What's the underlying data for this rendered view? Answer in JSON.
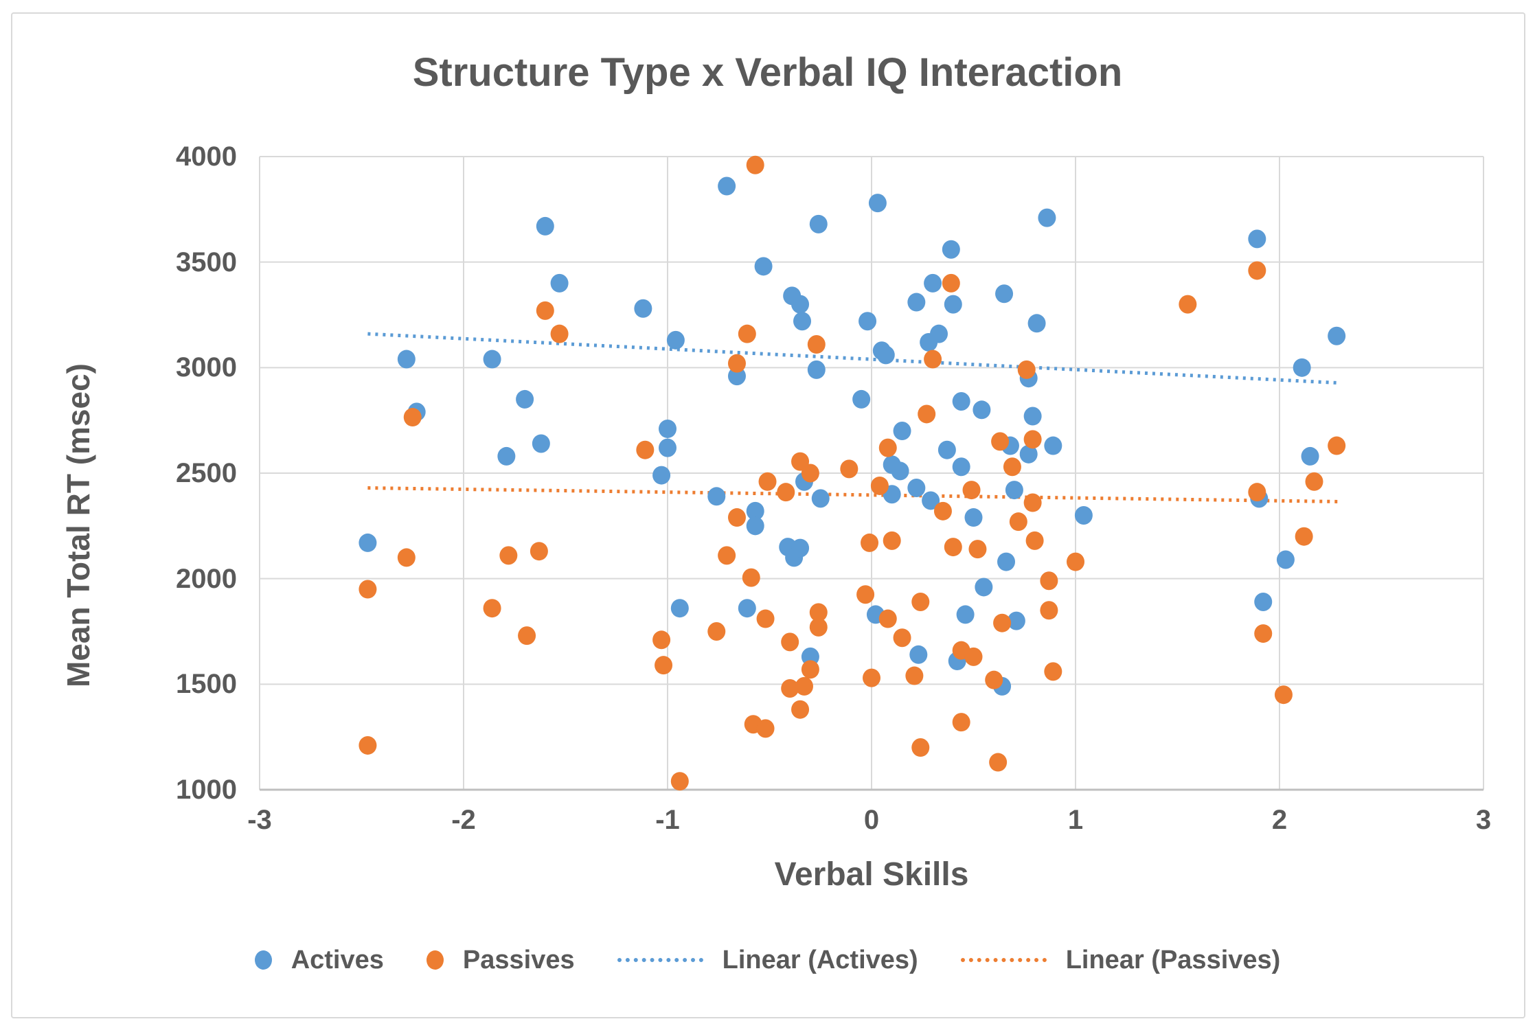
{
  "title": "Structure Type x Verbal IQ Interaction",
  "x_axis": {
    "title": "Verbal Skills",
    "tick_labels": [
      "-3",
      "-2",
      "-1",
      "0",
      "1",
      "2",
      "3"
    ],
    "min": -3,
    "max": 3
  },
  "y_axis": {
    "title": "Mean Total RT (msec)",
    "tick_labels": [
      "4000",
      "3500",
      "3000",
      "2500",
      "2000",
      "1500",
      "1000"
    ],
    "min": 1000,
    "max": 4000
  },
  "colors": {
    "actives": "#5B9BD5",
    "passives": "#ED7D31",
    "gridline": "#D9D9D9",
    "axis_line": "#BFBFBF",
    "text": "#595959",
    "frame_border": "#D9D9D9"
  },
  "legend": [
    {
      "label": "Actives",
      "marker": "dot",
      "color": "#5B9BD5"
    },
    {
      "label": "Passives",
      "marker": "dot",
      "color": "#ED7D31"
    },
    {
      "label": "Linear (Actives)",
      "marker": "dotted-line",
      "color": "#5B9BD5"
    },
    {
      "label": "Linear (Passives)",
      "marker": "dotted-line",
      "color": "#ED7D31"
    }
  ],
  "chart_data": {
    "type": "scatter",
    "title": "Structure Type x Verbal IQ Interaction",
    "xlabel": "Verbal Skills",
    "ylabel": "Mean Total RT (msec)",
    "xlim": [
      -3,
      3
    ],
    "ylim": [
      1000,
      4000
    ],
    "grid": true,
    "legend_position": "bottom",
    "series": [
      {
        "name": "Actives",
        "color": "#5B9BD5",
        "points": [
          [
            -2.47,
            2170
          ],
          [
            -2.28,
            3040
          ],
          [
            -2.23,
            2790
          ],
          [
            -1.86,
            3040
          ],
          [
            -1.79,
            2580
          ],
          [
            -1.7,
            2850
          ],
          [
            -1.62,
            2640
          ],
          [
            -1.6,
            3670
          ],
          [
            -1.53,
            3400
          ],
          [
            -1.12,
            3280
          ],
          [
            -1.03,
            2490
          ],
          [
            -1.0,
            2710
          ],
          [
            -1.0,
            2620
          ],
          [
            -0.96,
            3130
          ],
          [
            -0.94,
            1860
          ],
          [
            -0.76,
            2390
          ],
          [
            -0.71,
            3860
          ],
          [
            -0.66,
            2960
          ],
          [
            -0.61,
            1860
          ],
          [
            -0.57,
            2320
          ],
          [
            -0.57,
            2250
          ],
          [
            -0.53,
            3480
          ],
          [
            -0.41,
            2150
          ],
          [
            -0.39,
            3340
          ],
          [
            -0.38,
            2100
          ],
          [
            -0.35,
            2145
          ],
          [
            -0.35,
            3300
          ],
          [
            -0.34,
            3220
          ],
          [
            -0.33,
            2460
          ],
          [
            -0.3,
            1630
          ],
          [
            -0.27,
            2990
          ],
          [
            -0.26,
            3680
          ],
          [
            -0.25,
            2380
          ],
          [
            -0.05,
            2850
          ],
          [
            -0.02,
            3220
          ],
          [
            0.02,
            1830
          ],
          [
            0.03,
            3780
          ],
          [
            0.05,
            3080
          ],
          [
            0.07,
            3060
          ],
          [
            0.1,
            2540
          ],
          [
            0.1,
            2400
          ],
          [
            0.14,
            2510
          ],
          [
            0.15,
            2700
          ],
          [
            0.22,
            3310
          ],
          [
            0.22,
            2430
          ],
          [
            0.23,
            1640
          ],
          [
            0.28,
            3120
          ],
          [
            0.29,
            2370
          ],
          [
            0.3,
            3400
          ],
          [
            0.33,
            3160
          ],
          [
            0.37,
            2610
          ],
          [
            0.39,
            3560
          ],
          [
            0.4,
            3300
          ],
          [
            0.42,
            1610
          ],
          [
            0.44,
            2840
          ],
          [
            0.44,
            2530
          ],
          [
            0.46,
            1830
          ],
          [
            0.5,
            2290
          ],
          [
            0.54,
            2800
          ],
          [
            0.55,
            1960
          ],
          [
            0.64,
            1490
          ],
          [
            0.65,
            3350
          ],
          [
            0.66,
            2080
          ],
          [
            0.68,
            2630
          ],
          [
            0.7,
            2420
          ],
          [
            0.71,
            1800
          ],
          [
            0.77,
            2950
          ],
          [
            0.77,
            2590
          ],
          [
            0.79,
            2770
          ],
          [
            0.81,
            3210
          ],
          [
            0.86,
            3710
          ],
          [
            0.89,
            2630
          ],
          [
            1.04,
            2300
          ],
          [
            1.89,
            3610
          ],
          [
            1.9,
            2380
          ],
          [
            1.92,
            1890
          ],
          [
            2.03,
            2090
          ],
          [
            2.11,
            3000
          ],
          [
            2.15,
            2580
          ],
          [
            2.28,
            3150
          ]
        ]
      },
      {
        "name": "Passives",
        "color": "#ED7D31",
        "points": [
          [
            -2.47,
            1950
          ],
          [
            -2.47,
            1210
          ],
          [
            -2.28,
            2100
          ],
          [
            -2.25,
            2765
          ],
          [
            -1.86,
            1860
          ],
          [
            -1.78,
            2110
          ],
          [
            -1.69,
            1730
          ],
          [
            -1.63,
            2130
          ],
          [
            -1.6,
            3270
          ],
          [
            -1.53,
            3160
          ],
          [
            -1.11,
            2610
          ],
          [
            -1.03,
            1710
          ],
          [
            -1.02,
            1590
          ],
          [
            -0.94,
            1040
          ],
          [
            -0.76,
            1750
          ],
          [
            -0.71,
            2110
          ],
          [
            -0.66,
            3020
          ],
          [
            -0.66,
            2290
          ],
          [
            -0.61,
            3160
          ],
          [
            -0.59,
            2005
          ],
          [
            -0.58,
            1310
          ],
          [
            -0.57,
            3960
          ],
          [
            -0.52,
            1810
          ],
          [
            -0.52,
            1290
          ],
          [
            -0.51,
            2460
          ],
          [
            -0.42,
            2410
          ],
          [
            -0.4,
            1700
          ],
          [
            -0.4,
            1480
          ],
          [
            -0.35,
            2555
          ],
          [
            -0.35,
            1380
          ],
          [
            -0.33,
            1490
          ],
          [
            -0.3,
            2500
          ],
          [
            -0.3,
            1570
          ],
          [
            -0.27,
            3110
          ],
          [
            -0.26,
            1840
          ],
          [
            -0.26,
            1770
          ],
          [
            -0.11,
            2520
          ],
          [
            -0.03,
            1925
          ],
          [
            -0.01,
            2170
          ],
          [
            0.0,
            1530
          ],
          [
            0.04,
            2440
          ],
          [
            0.08,
            2620
          ],
          [
            0.08,
            1810
          ],
          [
            0.1,
            2180
          ],
          [
            0.15,
            1720
          ],
          [
            0.21,
            1540
          ],
          [
            0.24,
            1890
          ],
          [
            0.24,
            1200
          ],
          [
            0.27,
            2780
          ],
          [
            0.3,
            3040
          ],
          [
            0.35,
            2320
          ],
          [
            0.39,
            3400
          ],
          [
            0.4,
            2150
          ],
          [
            0.44,
            1660
          ],
          [
            0.44,
            1320
          ],
          [
            0.49,
            2420
          ],
          [
            0.5,
            1630
          ],
          [
            0.52,
            2140
          ],
          [
            0.6,
            1520
          ],
          [
            0.62,
            1130
          ],
          [
            0.63,
            2650
          ],
          [
            0.64,
            1790
          ],
          [
            0.69,
            2530
          ],
          [
            0.72,
            2270
          ],
          [
            0.76,
            2990
          ],
          [
            0.79,
            2660
          ],
          [
            0.79,
            2360
          ],
          [
            0.8,
            2180
          ],
          [
            0.87,
            1990
          ],
          [
            0.87,
            1850
          ],
          [
            0.89,
            1560
          ],
          [
            1.0,
            2080
          ],
          [
            1.55,
            3300
          ],
          [
            1.89,
            3460
          ],
          [
            1.89,
            2410
          ],
          [
            1.92,
            1740
          ],
          [
            2.02,
            1450
          ],
          [
            2.12,
            2200
          ],
          [
            2.17,
            2460
          ],
          [
            2.28,
            2630
          ]
        ]
      }
    ],
    "trendlines": [
      {
        "name": "Linear (Actives)",
        "color": "#5B9BD5",
        "x1": -2.47,
        "y1": 3160,
        "x2": 2.28,
        "y2": 2928
      },
      {
        "name": "Linear (Passives)",
        "color": "#ED7D31",
        "x1": -2.47,
        "y1": 2430,
        "x2": 2.29,
        "y2": 2365
      }
    ]
  }
}
